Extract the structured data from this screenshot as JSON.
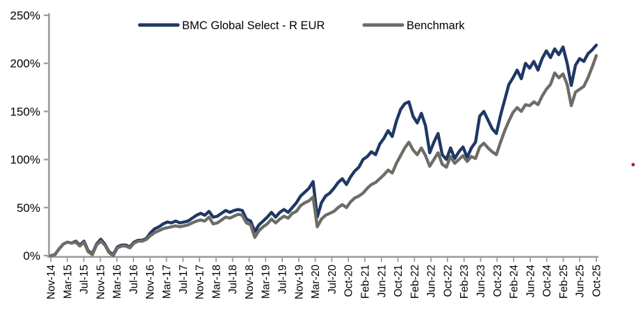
{
  "chart_data": {
    "type": "line",
    "title": "",
    "frequency": "monthly",
    "period_start": "Nov-14",
    "period_end": "Oct-25",
    "ylim": [
      0,
      250
    ],
    "y_tick_labels": [
      "0%",
      "50%",
      "100%",
      "150%",
      "200%",
      "250%"
    ],
    "x_tick_labels": [
      "Nov-14",
      "Mar-15",
      "Jul-15",
      "Nov-15",
      "Mar-16",
      "Jul-16",
      "Nov-16",
      "Mar-17",
      "Jul-17",
      "Nov-17",
      "Mar-18",
      "Jul-18",
      "Nov-18",
      "Mar-19",
      "Jul-19",
      "Nov-19",
      "Mar-20",
      "Jul-20",
      "Oct-20",
      "Feb-21",
      "Jun-21",
      "Oct-21",
      "Feb-22",
      "Jun-22",
      "Oct-22",
      "Feb-23",
      "Jun-23",
      "Oct-23",
      "Feb-24",
      "Jun-24",
      "Oct-24",
      "Feb-25",
      "Jun-25",
      "Oct-25"
    ],
    "legend_position": "top",
    "grid": "off",
    "axis_color": "#9B9B9B",
    "series": [
      {
        "name": "BMC Global Select - R EUR",
        "color": "#1F3864",
        "values": [
          0,
          1,
          7,
          12,
          14,
          13,
          15,
          11,
          15,
          5,
          2,
          12,
          17,
          12,
          4,
          1,
          9,
          11,
          11,
          9,
          14,
          16,
          16,
          18,
          24,
          28,
          30,
          33,
          35,
          34,
          36,
          34,
          35,
          36,
          39,
          42,
          44,
          42,
          46,
          40,
          41,
          44,
          47,
          45,
          47,
          48,
          47,
          38,
          36,
          25,
          32,
          36,
          40,
          45,
          40,
          45,
          48,
          45,
          50,
          55,
          62,
          66,
          70,
          77,
          40,
          55,
          62,
          65,
          70,
          76,
          80,
          74,
          82,
          88,
          92,
          100,
          103,
          108,
          105,
          116,
          122,
          130,
          124,
          140,
          152,
          158,
          160,
          145,
          138,
          148,
          135,
          107,
          118,
          127,
          105,
          100,
          112,
          101,
          108,
          113,
          102,
          112,
          118,
          145,
          150,
          141,
          132,
          127,
          146,
          162,
          178,
          185,
          193,
          184,
          200,
          195,
          202,
          193,
          205,
          213,
          206,
          215,
          209,
          217,
          200,
          177,
          198,
          205,
          202,
          210,
          214,
          219
        ]
      },
      {
        "name": "Benchmark",
        "color": "#6E6C66",
        "values": [
          0,
          1,
          7,
          12,
          14,
          13,
          14,
          10,
          14,
          4,
          1,
          11,
          15,
          11,
          3,
          0,
          8,
          10,
          10,
          8,
          13,
          15,
          15,
          17,
          21,
          24,
          26,
          28,
          29,
          30,
          31,
          30,
          31,
          32,
          34,
          36,
          37,
          36,
          40,
          33,
          34,
          37,
          40,
          39,
          41,
          43,
          42,
          34,
          32,
          19,
          26,
          30,
          33,
          38,
          34,
          38,
          41,
          39,
          44,
          46,
          52,
          55,
          57,
          61,
          30,
          38,
          42,
          44,
          46,
          50,
          53,
          50,
          56,
          60,
          62,
          65,
          70,
          74,
          76,
          80,
          84,
          89,
          86,
          96,
          104,
          112,
          118,
          110,
          105,
          112,
          104,
          93,
          100,
          107,
          95,
          92,
          103,
          96,
          100,
          104,
          98,
          103,
          101,
          113,
          117,
          112,
          108,
          105,
          118,
          130,
          140,
          149,
          154,
          150,
          157,
          156,
          160,
          157,
          166,
          173,
          178,
          190,
          185,
          189,
          178,
          156,
          170,
          173,
          176,
          185,
          196,
          208
        ]
      }
    ]
  },
  "annotations": {
    "red_dot": {
      "color": "#B2222A"
    }
  }
}
